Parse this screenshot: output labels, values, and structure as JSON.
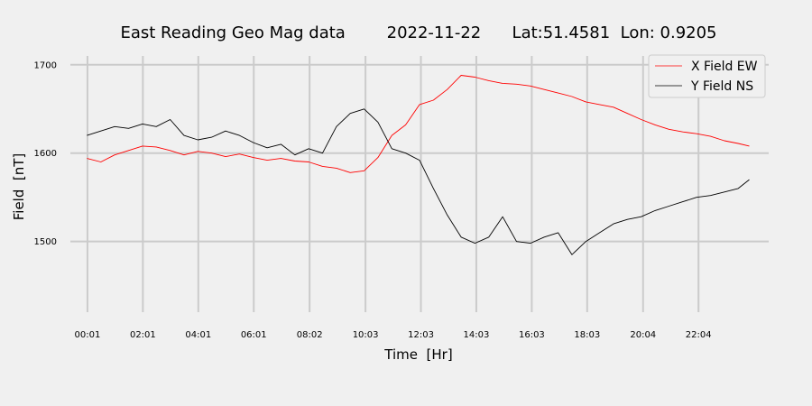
{
  "chart_data": {
    "type": "line",
    "title": "East Reading Geo Mag data        2022-11-22      Lat:51.4581  Lon: 0.9205",
    "xlabel": "Time  [Hr]",
    "ylabel": "Field  [nT]",
    "xlim": [
      -0.6,
      24.6
    ],
    "ylim": [
      1420,
      1710
    ],
    "x_ticks": [
      0.017,
      2.017,
      4.017,
      6.017,
      8.033,
      10.05,
      12.05,
      14.05,
      16.05,
      18.05,
      20.067,
      22.067
    ],
    "x_tick_labels": [
      "00:01",
      "02:01",
      "04:01",
      "06:01",
      "08:02",
      "10:03",
      "12:03",
      "14:03",
      "16:03",
      "18:03",
      "20:04",
      "22:04"
    ],
    "y_ticks": [
      1500,
      1600,
      1700
    ],
    "y_tick_labels": [
      "1500",
      "1600",
      "1700"
    ],
    "grid": true,
    "legend": "top-right",
    "series": [
      {
        "name": "X Field EW",
        "color": "#ff0000",
        "x": [
          0,
          0.5,
          1,
          1.5,
          2,
          2.5,
          3,
          3.5,
          4,
          4.5,
          5,
          5.5,
          6,
          6.5,
          7,
          7.5,
          8,
          8.5,
          9,
          9.5,
          10,
          10.5,
          11,
          11.5,
          12,
          12.5,
          13,
          13.5,
          14,
          14.5,
          15,
          15.5,
          16,
          16.5,
          17,
          17.5,
          18,
          18.5,
          19,
          19.5,
          20,
          20.5,
          21,
          21.5,
          22,
          22.5,
          23,
          23.5,
          23.9
        ],
        "y": [
          1594,
          1590,
          1598,
          1603,
          1608,
          1607,
          1603,
          1598,
          1602,
          1600,
          1596,
          1599,
          1595,
          1592,
          1594,
          1591,
          1590,
          1585,
          1583,
          1578,
          1580,
          1595,
          1620,
          1632,
          1655,
          1660,
          1672,
          1688,
          1686,
          1682,
          1679,
          1678,
          1676,
          1672,
          1668,
          1664,
          1658,
          1655,
          1652,
          1645,
          1638,
          1632,
          1627,
          1624,
          1622,
          1619,
          1614,
          1611,
          1608
        ]
      },
      {
        "name": "Y Field NS",
        "color": "#000000",
        "x": [
          0,
          0.5,
          1,
          1.5,
          2,
          2.5,
          3,
          3.5,
          4,
          4.5,
          5,
          5.5,
          6,
          6.5,
          7,
          7.5,
          8,
          8.5,
          9,
          9.5,
          10,
          10.5,
          11,
          11.5,
          12,
          12.5,
          13,
          13.5,
          14,
          14.5,
          15,
          15.5,
          16,
          16.5,
          17,
          17.5,
          18,
          18.5,
          19,
          19.5,
          20,
          20.5,
          21,
          21.5,
          22,
          22.5,
          23,
          23.5,
          23.9
        ],
        "y": [
          1620,
          1625,
          1630,
          1628,
          1633,
          1630,
          1638,
          1620,
          1615,
          1618,
          1625,
          1620,
          1612,
          1606,
          1610,
          1598,
          1605,
          1600,
          1630,
          1645,
          1650,
          1635,
          1605,
          1600,
          1592,
          1560,
          1530,
          1505,
          1498,
          1505,
          1528,
          1500,
          1498,
          1505,
          1510,
          1485,
          1500,
          1510,
          1520,
          1525,
          1528,
          1535,
          1540,
          1545,
          1550,
          1552,
          1556,
          1560,
          1570
        ]
      }
    ]
  }
}
